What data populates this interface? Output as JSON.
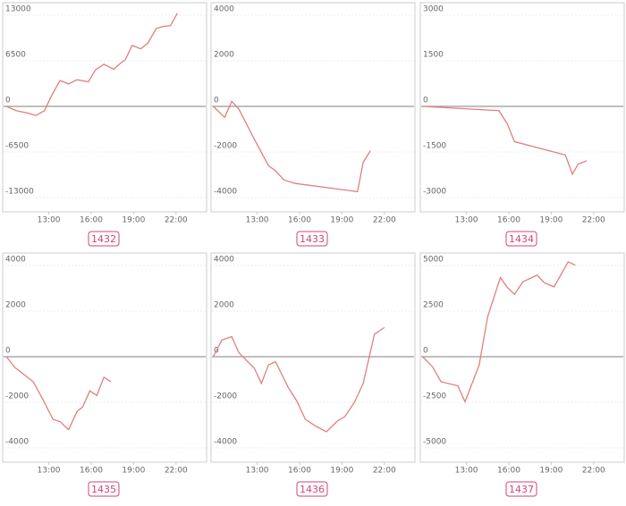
{
  "chart_data": [
    {
      "type": "line",
      "title": "1432",
      "xlim": [
        9.8,
        24.1
      ],
      "xticks": [
        {
          "value": 13,
          "label": "13:00"
        },
        {
          "value": 16,
          "label": "16:00"
        },
        {
          "value": 19,
          "label": "19:00"
        },
        {
          "value": 22,
          "label": "22:00"
        }
      ],
      "ylim": [
        -13000,
        13000
      ],
      "yticks": [
        -13000,
        -6500,
        0,
        6500,
        13000
      ],
      "grid": true,
      "series": [
        {
          "color": "#e07f7f",
          "x": [
            10.0,
            10.7,
            11.5,
            12.1,
            12.7,
            13.2,
            13.8,
            14.4,
            15.0,
            15.8,
            16.3,
            16.9,
            17.6,
            18.1,
            18.4,
            18.9,
            19.5,
            20.0,
            20.6,
            21.1,
            21.6,
            22.1
          ],
          "values": [
            0,
            -600,
            -950,
            -1300,
            -600,
            1550,
            3700,
            3200,
            3800,
            3500,
            5200,
            6000,
            5300,
            6200,
            6600,
            8700,
            8200,
            9000,
            11100,
            11400,
            11500,
            13300
          ]
        }
      ]
    },
    {
      "type": "line",
      "title": "1433",
      "xlim": [
        9.8,
        24.1
      ],
      "xticks": [
        {
          "value": 13,
          "label": "13:00"
        },
        {
          "value": 16,
          "label": "16:00"
        },
        {
          "value": 19,
          "label": "19:00"
        },
        {
          "value": 22,
          "label": "22:00"
        }
      ],
      "ylim": [
        -4000,
        4000
      ],
      "yticks": [
        -4000,
        -2000,
        0,
        2000,
        4000
      ],
      "grid": true,
      "series": [
        {
          "color": "#e07f7f",
          "x": [
            9.9,
            10.7,
            11.2,
            11.7,
            12.7,
            13.8,
            14.3,
            14.9,
            15.7,
            20.1,
            20.5,
            21.0
          ],
          "values": [
            0,
            -480,
            220,
            -110,
            -1320,
            -2600,
            -2830,
            -3230,
            -3380,
            -3740,
            -2460,
            -1950
          ]
        }
      ]
    },
    {
      "type": "line",
      "title": "1434",
      "xlim": [
        9.8,
        24.1
      ],
      "xticks": [
        {
          "value": 13,
          "label": "13:00"
        },
        {
          "value": 16,
          "label": "16:00"
        },
        {
          "value": 19,
          "label": "19:00"
        },
        {
          "value": 22,
          "label": "22:00"
        }
      ],
      "ylim": [
        -3000,
        3000
      ],
      "yticks": [
        -3000,
        -1500,
        0,
        1500,
        3000
      ],
      "grid": true,
      "series": [
        {
          "color": "#e07f7f",
          "x": [
            9.9,
            15.3,
            15.9,
            16.4,
            20.0,
            20.5,
            20.9,
            21.5
          ],
          "values": [
            0,
            -140,
            -580,
            -1160,
            -1600,
            -2230,
            -1900,
            -1790
          ]
        }
      ]
    },
    {
      "type": "line",
      "title": "1435",
      "xlim": [
        9.8,
        24.1
      ],
      "xticks": [
        {
          "value": 13,
          "label": "13:00"
        },
        {
          "value": 16,
          "label": "16:00"
        },
        {
          "value": 19,
          "label": "19:00"
        },
        {
          "value": 22,
          "label": "22:00"
        }
      ],
      "ylim": [
        -4000,
        4000
      ],
      "yticks": [
        -4000,
        -2000,
        0,
        2000,
        4000
      ],
      "grid": true,
      "series": [
        {
          "color": "#e07f7f",
          "x": [
            10.0,
            10.6,
            11.9,
            12.6,
            13.3,
            13.8,
            14.4,
            15.0,
            15.4,
            15.9,
            16.4,
            16.9,
            17.4
          ],
          "values": [
            0,
            -470,
            -1100,
            -1900,
            -2750,
            -2850,
            -3200,
            -2400,
            -2200,
            -1500,
            -1700,
            -900,
            -1100
          ]
        }
      ]
    },
    {
      "type": "line",
      "title": "1436",
      "xlim": [
        9.8,
        24.1
      ],
      "xticks": [
        {
          "value": 13,
          "label": "13:00"
        },
        {
          "value": 16,
          "label": "16:00"
        },
        {
          "value": 19,
          "label": "19:00"
        },
        {
          "value": 22,
          "label": "22:00"
        }
      ],
      "ylim": [
        -4000,
        4000
      ],
      "yticks": [
        -4000,
        -2000,
        0,
        2000,
        4000
      ],
      "grid": true,
      "series": [
        {
          "color": "#e07f7f",
          "x": [
            9.9,
            10.5,
            11.2,
            11.7,
            12.8,
            13.3,
            13.8,
            14.3,
            15.2,
            15.8,
            16.4,
            17.1,
            17.9,
            18.7,
            19.2,
            19.9,
            20.5,
            21.3,
            22.0
          ],
          "values": [
            0,
            730,
            880,
            180,
            -510,
            -1170,
            -360,
            -220,
            -1350,
            -1940,
            -2740,
            -3030,
            -3290,
            -2810,
            -2630,
            -1980,
            -1170,
            990,
            1280
          ]
        }
      ]
    },
    {
      "type": "line",
      "title": "1437",
      "xlim": [
        9.8,
        24.1
      ],
      "xticks": [
        {
          "value": 13,
          "label": "13:00"
        },
        {
          "value": 16,
          "label": "16:00"
        },
        {
          "value": 19,
          "label": "19:00"
        },
        {
          "value": 22,
          "label": "22:00"
        }
      ],
      "ylim": [
        -5000,
        5000
      ],
      "yticks": [
        -5000,
        -2500,
        0,
        2500,
        5000
      ],
      "grid": true,
      "series": [
        {
          "color": "#e07f7f",
          "x": [
            9.9,
            10.6,
            11.2,
            12.4,
            12.9,
            13.9,
            14.5,
            15.4,
            15.9,
            16.4,
            17.0,
            18.0,
            18.5,
            19.2,
            20.2,
            20.7
          ],
          "values": [
            0,
            -550,
            -1370,
            -1600,
            -2470,
            -460,
            2190,
            4340,
            3790,
            3420,
            4110,
            4470,
            4060,
            3830,
            5200,
            5020
          ]
        }
      ]
    }
  ]
}
